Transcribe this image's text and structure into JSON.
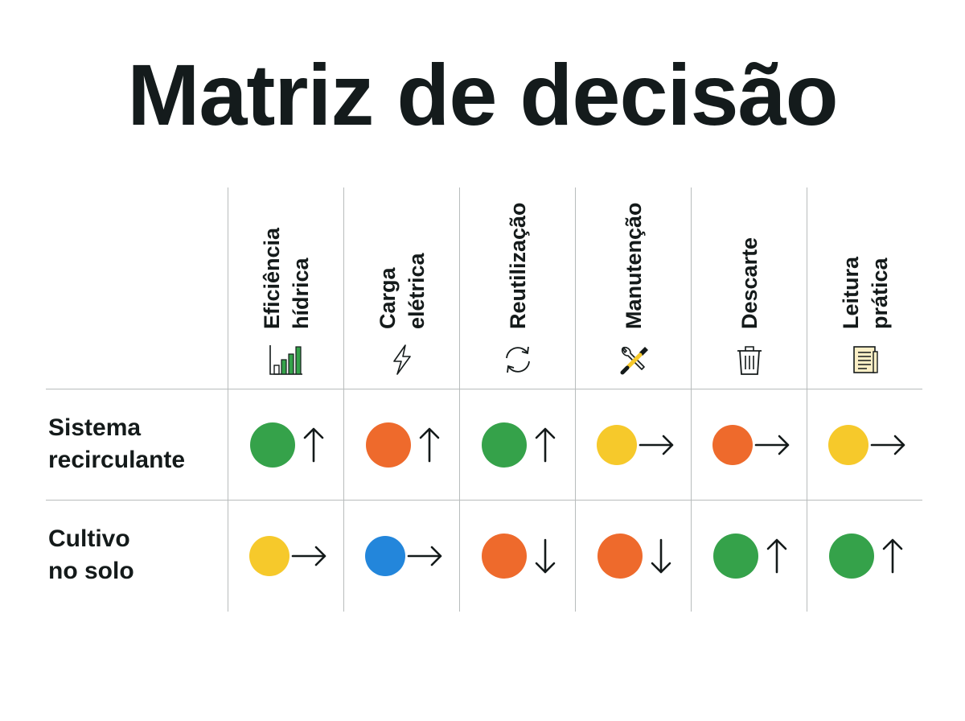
{
  "title": "Matriz de decisão",
  "colors": {
    "green": "#35a24a",
    "orange": "#ee6a2c",
    "yellow": "#f6c92b",
    "blue": "#2386db",
    "ink": "#141a1a",
    "grid": "#b8bcbc"
  },
  "columns": [
    {
      "label": "Eficiência\nhídrica",
      "icon": "bar-chart-icon"
    },
    {
      "label": "Carga\nelétrica",
      "icon": "lightning-bolt-icon"
    },
    {
      "label": "Reutilização",
      "icon": "refresh-cycle-icon"
    },
    {
      "label": "Manutenção",
      "icon": "wrench-screwdriver-icon"
    },
    {
      "label": "Descarte",
      "icon": "trash-bin-icon"
    },
    {
      "label": "Leitura prática",
      "icon": "document-icon"
    }
  ],
  "rows": [
    {
      "label": "Sistema\nrecirculante",
      "cells": [
        {
          "color": "green",
          "trend": "up"
        },
        {
          "color": "orange",
          "trend": "up"
        },
        {
          "color": "green",
          "trend": "up"
        },
        {
          "color": "yellow",
          "trend": "right"
        },
        {
          "color": "orange",
          "trend": "right"
        },
        {
          "color": "yellow",
          "trend": "right"
        }
      ]
    },
    {
      "label": "Cultivo\nno solo",
      "cells": [
        {
          "color": "yellow",
          "trend": "right"
        },
        {
          "color": "blue",
          "trend": "right"
        },
        {
          "color": "orange",
          "trend": "down"
        },
        {
          "color": "orange",
          "trend": "down"
        },
        {
          "color": "green",
          "trend": "up"
        },
        {
          "color": "green",
          "trend": "up"
        }
      ]
    }
  ]
}
